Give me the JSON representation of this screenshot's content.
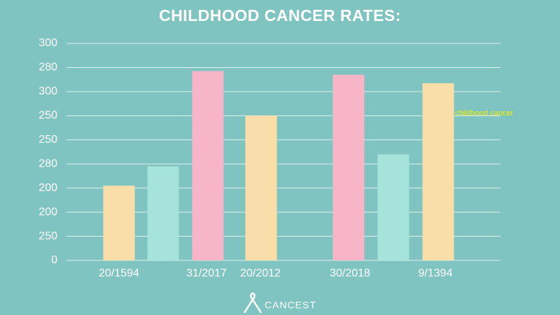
{
  "chart_data": {
    "type": "bar",
    "title": "CHILDHOOD CANCER RATES:",
    "categories": [
      "20/1594",
      null,
      "31/2017",
      "20/2012",
      "30/2018",
      null,
      "9/1394"
    ],
    "values": [
      3.1,
      3.9,
      7.85,
      6.0,
      7.7,
      4.4,
      7.35
    ],
    "colors": [
      "#f9deaa",
      "#a6e3da",
      "#f7b6c8",
      "#f9deaa",
      "#f7b6c8",
      "#a6e3da",
      "#f9deaa"
    ],
    "ylim": [
      0,
      9
    ],
    "yticks": [
      {
        "value": 0,
        "label": "0"
      },
      {
        "value": 1,
        "label": "250"
      },
      {
        "value": 2,
        "label": "200"
      },
      {
        "value": 3,
        "label": "200"
      },
      {
        "value": 4,
        "label": "280"
      },
      {
        "value": 5,
        "label": "250"
      },
      {
        "value": 6,
        "label": "250"
      },
      {
        "value": 7,
        "label": "300"
      },
      {
        "value": 8,
        "label": "280"
      },
      {
        "value": 9,
        "label": "300"
      }
    ],
    "grid": true,
    "annotation": "childhood cancer",
    "footer": "CANCEST"
  }
}
